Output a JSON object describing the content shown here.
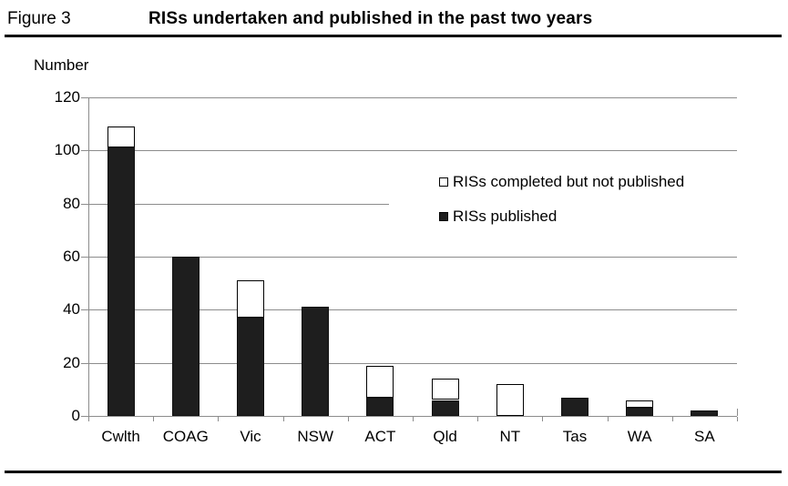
{
  "figure": {
    "label": "Figure 3",
    "title": "RISs undertaken and published in the past two years"
  },
  "chart_data": {
    "type": "bar",
    "stacked": true,
    "title": "RISs undertaken and published in the past two years",
    "ylabel": "Number",
    "xlabel": "",
    "ylim": [
      0,
      120
    ],
    "yticks": [
      0,
      20,
      40,
      60,
      80,
      100,
      120
    ],
    "grid": true,
    "legend_position": "inside-right",
    "categories": [
      "Cwlth",
      "COAG",
      "Vic",
      "NSW",
      "ACT",
      "Qld",
      "NT",
      "Tas",
      "WA",
      "SA"
    ],
    "series": [
      {
        "name": "RISs published",
        "swatch": "filled",
        "color": "#1e1e1e",
        "values": [
          101,
          60,
          37,
          41,
          7,
          6,
          0,
          7,
          3,
          2
        ]
      },
      {
        "name": "RISs completed but not published",
        "swatch": "open",
        "color": "#ffffff",
        "values": [
          8,
          0,
          14,
          0,
          12,
          8,
          12,
          0,
          3,
          0
        ]
      }
    ],
    "totals": [
      109,
      60,
      51,
      41,
      19,
      14,
      12,
      7,
      6,
      2
    ]
  },
  "legend": {
    "items": [
      {
        "label": "RISs completed but not published",
        "swatch": "open"
      },
      {
        "label": "RISs published",
        "swatch": "filled"
      }
    ]
  },
  "colors": {
    "bar_fill": "#1e1e1e",
    "grid_line": "#8c8c8c",
    "rule_line": "#000000"
  }
}
